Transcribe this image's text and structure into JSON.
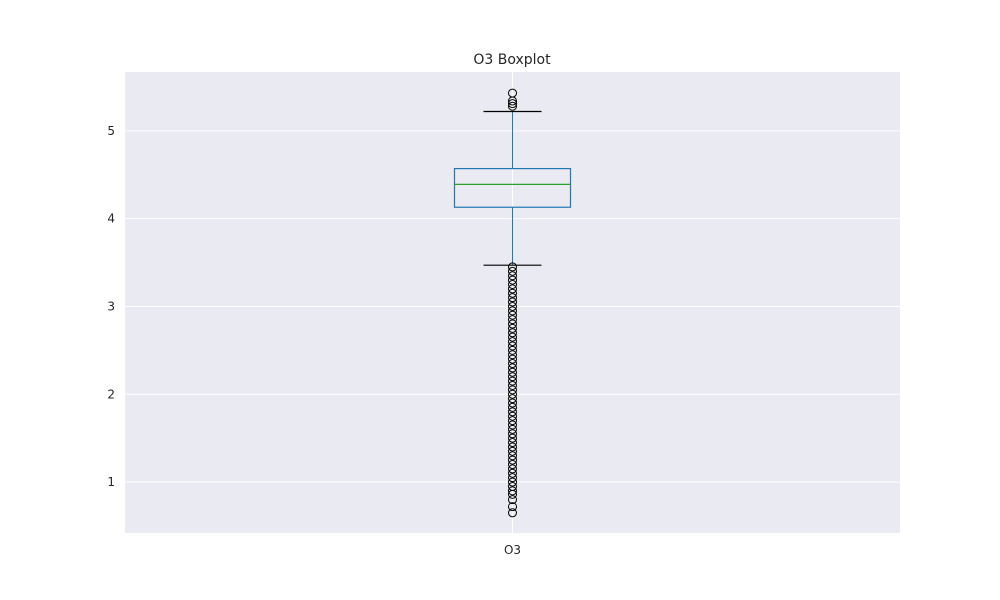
{
  "chart_data": {
    "type": "boxplot",
    "title": "O3 Boxplot",
    "xlabel": "",
    "ylabel": "",
    "categories": [
      "O3"
    ],
    "ylim": [
      0.42,
      5.67
    ],
    "yticks": [
      1,
      2,
      3,
      4,
      5
    ],
    "grid": true,
    "legend": "none",
    "boxes": [
      {
        "category": "O3",
        "whisker_low": 3.47,
        "q1": 4.13,
        "median": 4.39,
        "q3": 4.57,
        "whisker_high": 5.22,
        "outliers_high": [
          5.28,
          5.31,
          5.34,
          5.43
        ],
        "outliers_low": [
          0.65,
          0.72,
          0.8,
          0.86,
          0.9,
          0.95,
          1.0,
          1.05,
          1.1,
          1.15,
          1.2,
          1.25,
          1.3,
          1.35,
          1.4,
          1.45,
          1.5,
          1.55,
          1.6,
          1.65,
          1.7,
          1.75,
          1.8,
          1.85,
          1.9,
          1.95,
          2.0,
          2.05,
          2.1,
          2.15,
          2.2,
          2.25,
          2.3,
          2.35,
          2.4,
          2.45,
          2.5,
          2.55,
          2.6,
          2.65,
          2.7,
          2.75,
          2.8,
          2.85,
          2.9,
          2.95,
          3.0,
          3.05,
          3.1,
          3.15,
          3.2,
          3.25,
          3.3,
          3.35,
          3.4,
          3.45
        ]
      }
    ],
    "colors": {
      "background": "#eaeaf2",
      "grid": "#ffffff",
      "box": "#1f77b4",
      "median": "#2ca02c",
      "whisker_cap": "#000000",
      "outlier": "#000000"
    }
  }
}
